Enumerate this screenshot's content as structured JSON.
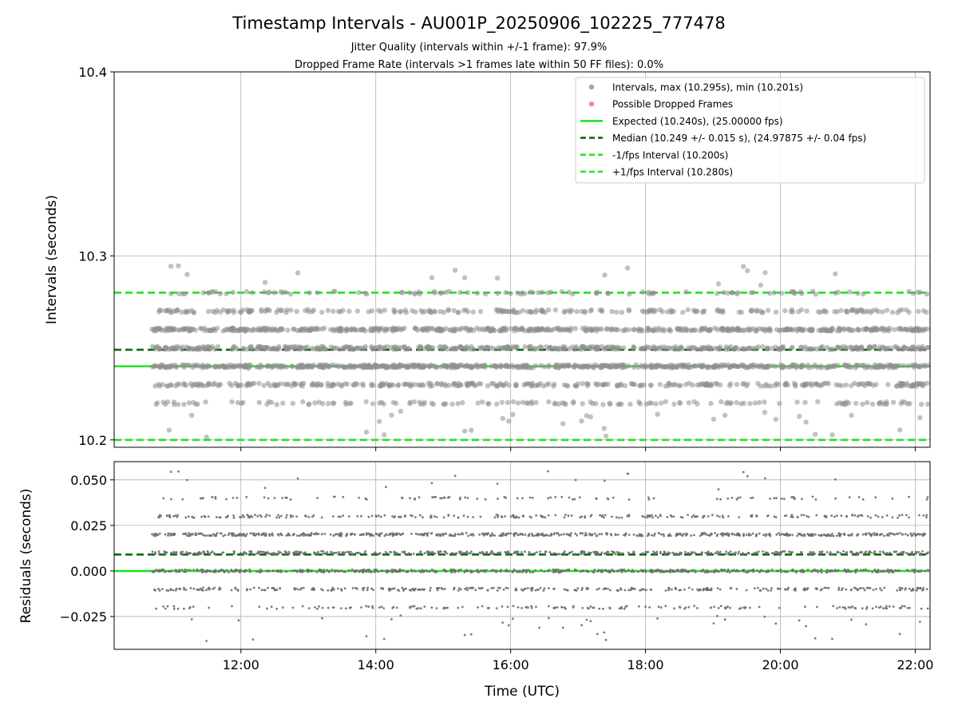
{
  "chart_data": [
    {
      "type": "scatter",
      "title": "Timestamp Intervals - AU001P_20250906_102225_777478",
      "subtitle_lines": [
        "Jitter Quality (intervals within +/-1 frame): 97.9%",
        "Dropped Frame Rate (intervals >1 frames late within 50 FF files): 0.0%"
      ],
      "ylabel": "Intervals (seconds)",
      "ylim": [
        10.196,
        10.4
      ],
      "xlim": [
        10.12,
        22.22
      ],
      "yticks": [
        10.2,
        10.3,
        10.4
      ],
      "ytick_labels": [
        "10.2",
        "10.3",
        "10.4"
      ],
      "xticks": [
        12,
        14,
        16,
        18,
        20,
        22
      ],
      "grid": true,
      "legend_position": "top-right",
      "legend": [
        {
          "label": "Intervals, max (10.295s), min (10.201s)",
          "kind": "marker",
          "color": "#8f8f8f"
        },
        {
          "label": "Possible Dropped Frames",
          "kind": "marker",
          "color": "#f26b6b"
        },
        {
          "label": "Expected (10.240s), (25.00000 fps)",
          "kind": "solid",
          "color": "#22e322"
        },
        {
          "label": "Median (10.249 +/- 0.015 s), (24.97875 +/- 0.04 fps)",
          "kind": "dashed",
          "color": "#0c6b0c"
        },
        {
          "label": "-1/fps Interval (10.200s)",
          "kind": "dashed",
          "color": "#22e322"
        },
        {
          "label": "+1/fps Interval (10.280s)",
          "kind": "dashed",
          "color": "#22e322"
        }
      ],
      "reference_lines": [
        {
          "name": "expected",
          "y": 10.24,
          "style": "solid",
          "color": "#22e322"
        },
        {
          "name": "median",
          "y": 10.249,
          "style": "dashed",
          "color": "#0c6b0c"
        },
        {
          "name": "minus-one-frame",
          "y": 10.2,
          "style": "dashed",
          "color": "#22e322"
        },
        {
          "name": "plus-one-frame",
          "y": 10.28,
          "style": "dashed",
          "color": "#22e322"
        }
      ],
      "series": [
        {
          "name": "Intervals",
          "x_range": [
            10.68,
            22.2
          ],
          "point_count": 2600,
          "levels": [
            10.22,
            10.23,
            10.24,
            10.25,
            10.26,
            10.27,
            10.28
          ],
          "level_weights": [
            0.06,
            0.14,
            0.24,
            0.2,
            0.22,
            0.1,
            0.04
          ],
          "y_max": 10.295,
          "y_min": 10.201,
          "color": "#8f8f8f"
        },
        {
          "name": "Possible Dropped Frames",
          "x": [],
          "y": [],
          "color": "#f26b6b"
        }
      ]
    },
    {
      "type": "scatter",
      "xlabel": "Time (UTC)",
      "ylabel": "Residuals (seconds)",
      "ylim": [
        -0.043,
        0.06
      ],
      "xlim": [
        10.12,
        22.22
      ],
      "yticks": [
        -0.025,
        0.0,
        0.025,
        0.05
      ],
      "ytick_labels": [
        "−0.025",
        "0.000",
        "0.025",
        "0.050"
      ],
      "xticks": [
        12,
        14,
        16,
        18,
        20,
        22
      ],
      "xtick_labels": [
        "12:00",
        "14:00",
        "16:00",
        "18:00",
        "20:00",
        "22:00"
      ],
      "grid": true,
      "reference_lines": [
        {
          "name": "zero",
          "y": 0.0,
          "style": "solid",
          "color": "#22e322"
        },
        {
          "name": "median-residual",
          "y": 0.009,
          "style": "dashed",
          "color": "#0c6b0c"
        }
      ],
      "series": [
        {
          "name": "Residuals",
          "x_range": [
            10.68,
            22.2
          ],
          "point_count": 2600,
          "levels": [
            -0.02,
            -0.01,
            0.0,
            0.01,
            0.02,
            0.03,
            0.04
          ],
          "level_weights": [
            0.06,
            0.14,
            0.24,
            0.2,
            0.22,
            0.1,
            0.04
          ],
          "y_max": 0.055,
          "y_min": -0.039,
          "color": "#6e6e6e"
        }
      ]
    }
  ]
}
